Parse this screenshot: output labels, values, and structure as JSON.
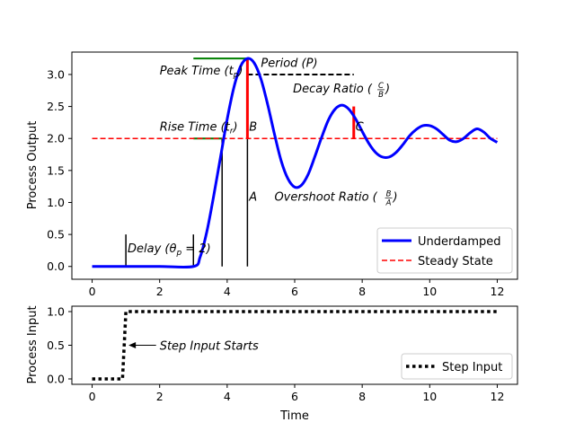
{
  "chart_data": [
    {
      "type": "line",
      "xlabel": "",
      "ylabel": "Process Output",
      "xlim": [
        -0.6,
        12.6
      ],
      "ylim": [
        -0.2,
        3.35
      ],
      "xticks": [
        0,
        2,
        4,
        6,
        8,
        10,
        12
      ],
      "yticks": [
        0.0,
        0.5,
        1.0,
        1.5,
        2.0,
        2.5,
        3.0
      ],
      "ytick_labels": [
        "0.0",
        "0.5",
        "1.0",
        "1.5",
        "2.0",
        "2.5",
        "3.0"
      ],
      "legend_position": "lower-right",
      "series": [
        {
          "name": "Underdamped",
          "color": "#0000ff",
          "style": "solid",
          "x": [
            0,
            1,
            2,
            3,
            3.2,
            3.4,
            3.6,
            3.8,
            4.0,
            4.2,
            4.4,
            4.6,
            4.8,
            5.0,
            5.2,
            5.4,
            5.6,
            5.8,
            6.0,
            6.2,
            6.4,
            6.6,
            6.8,
            7.0,
            7.2,
            7.4,
            7.6,
            7.8,
            8.0,
            8.2,
            8.4,
            8.6,
            8.8,
            9.0,
            9.2,
            9.4,
            9.6,
            9.8,
            10.0,
            10.2,
            10.4,
            10.6,
            10.8,
            11.0,
            11.2,
            11.4,
            11.6,
            11.8,
            12.0
          ],
          "y": [
            0,
            0,
            0,
            0,
            0.15,
            0.55,
            1.1,
            1.7,
            2.3,
            2.8,
            3.13,
            3.25,
            3.18,
            2.93,
            2.53,
            2.07,
            1.65,
            1.37,
            1.24,
            1.27,
            1.44,
            1.72,
            2.02,
            2.29,
            2.46,
            2.52,
            2.46,
            2.31,
            2.11,
            1.92,
            1.78,
            1.71,
            1.71,
            1.78,
            1.9,
            2.04,
            2.14,
            2.2,
            2.2,
            2.15,
            2.06,
            1.97,
            1.95,
            2.0,
            2.09,
            2.15,
            2.1,
            2.0,
            1.94
          ]
        },
        {
          "name": "Steady State",
          "color": "#ff0000",
          "style": "dashed",
          "x": [
            0,
            12
          ],
          "y": [
            2.0,
            2.0
          ]
        }
      ],
      "annotations": {
        "delay": "Delay (θ",
        "delay_sub": "p",
        "delay_tail": " = 2)",
        "rise_time": "Rise Time (t",
        "rise_time_sub": "r",
        "rise_time_tail": ")",
        "peak_time": "Peak Time (t",
        "peak_time_sub": "p",
        "peak_time_tail": ")",
        "period": "Period (P)",
        "decay_ratio": "Decay Ratio (",
        "decay_ratio_num": "C",
        "decay_ratio_den": "B",
        "decay_ratio_tail": ")",
        "overshoot_ratio": "Overshoot Ratio (",
        "overshoot_ratio_num": "B",
        "overshoot_ratio_den": "A",
        "overshoot_ratio_tail": ")",
        "a": "A",
        "b": "B",
        "c": "C"
      },
      "markers": {
        "delay_start": 1.0,
        "delay_end": 3.0,
        "delay_mark_height": 0.5,
        "rise_time_x": 3.85,
        "peak_time_x": 4.6,
        "peak_y": 3.25,
        "period_end_x": 7.75,
        "period_y": 3.0,
        "steady_y": 2.0,
        "c_x": 7.75,
        "c_top": 2.5,
        "horiz_line_start": 3.0,
        "green_color": "#008000",
        "red_color": "#ff0000",
        "black_color": "#000000"
      }
    },
    {
      "type": "line",
      "xlabel": "Time",
      "ylabel": "Process Input",
      "xlim": [
        -0.6,
        12.6
      ],
      "ylim": [
        -0.08,
        1.08
      ],
      "xticks": [
        0,
        2,
        4,
        6,
        8,
        10,
        12
      ],
      "yticks": [
        0.0,
        0.5,
        1.0
      ],
      "ytick_labels": [
        "0.0",
        "0.5",
        "1.0"
      ],
      "legend_position": "lower-right",
      "series": [
        {
          "name": "Step Input",
          "color": "#000000",
          "style": "dotted",
          "x": [
            0,
            0.9,
            1.0,
            12
          ],
          "y": [
            0,
            0,
            1,
            1
          ]
        }
      ],
      "annotations": {
        "step_input": "Step Input Starts",
        "arrow_to": [
          1.0,
          0.5
        ],
        "text_at": [
          2.0,
          0.5
        ]
      }
    }
  ]
}
